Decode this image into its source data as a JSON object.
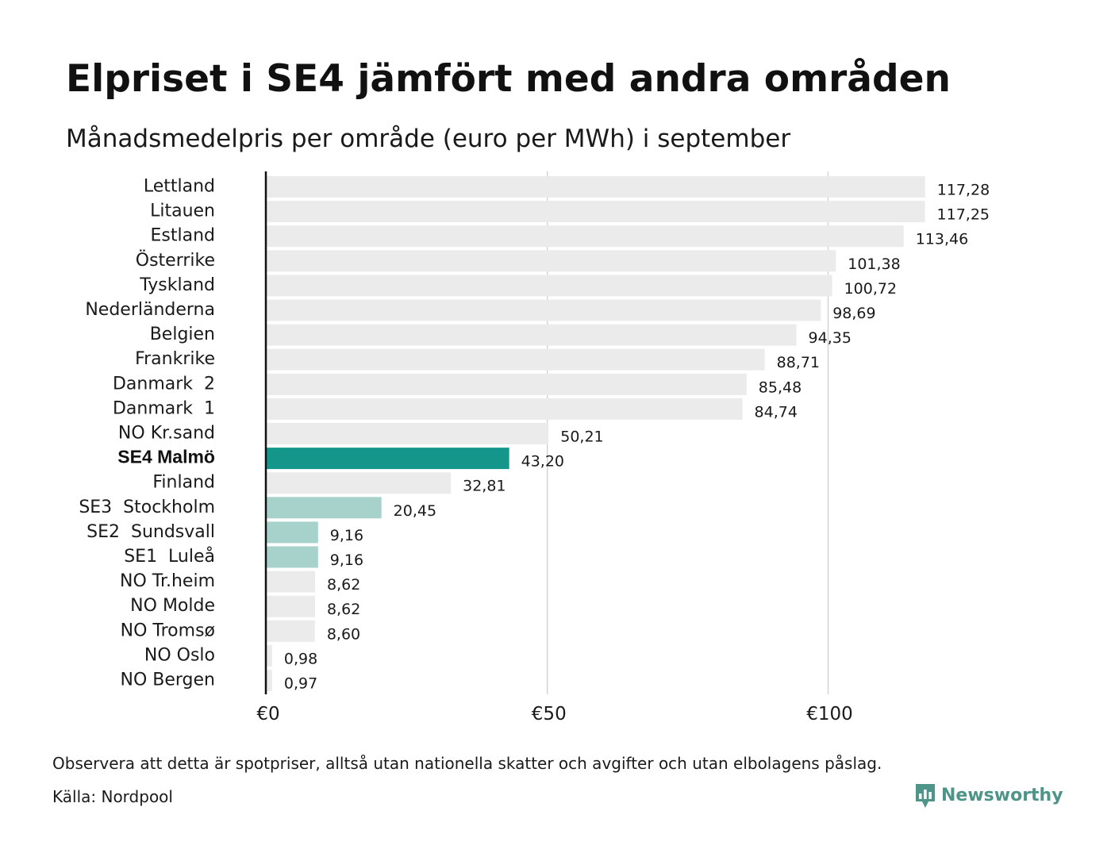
{
  "title": "Elpriset i SE4 jämfört med andra områden",
  "subtitle": "Månadsmedelpris per område (euro per MWh) i september",
  "footnote": "Observera att detta är spotpriser, alltså utan nationella skatter och avgifter och utan elbolagens påslag.",
  "source": "Källa: Nordpool",
  "brand": {
    "name": "Newsworthy",
    "icon": "newsworthy-logo-icon",
    "color": "#4f9488"
  },
  "colors": {
    "default_bar": "#ebebeb",
    "highlight_bar": "#14968a",
    "swedish_bar": "#a7d1cb",
    "axis_line": "#111111",
    "grid_line": "#c9cbd6"
  },
  "chart_data": {
    "type": "bar",
    "orientation": "horizontal",
    "categories": [
      "Lettland",
      "Litauen",
      "Estland",
      "Österrike",
      "Tyskland",
      "Nederländerna",
      "Belgien",
      "Frankrike",
      "Danmark  2",
      "Danmark  1",
      "NO Kr.sand",
      "SE4 Malmö",
      "Finland",
      "SE3  Stockholm",
      "SE2  Sundsvall",
      "SE1  Luleå",
      "NO Tr.heim",
      "NO Molde",
      "NO Tromsø",
      "NO Oslo",
      "NO Bergen"
    ],
    "values": [
      117.28,
      117.25,
      113.46,
      101.38,
      100.72,
      98.69,
      94.35,
      88.71,
      85.48,
      84.74,
      50.21,
      43.2,
      32.81,
      20.45,
      9.16,
      9.16,
      8.62,
      8.62,
      8.6,
      0.98,
      0.97
    ],
    "value_labels": [
      "117,28",
      "117,25",
      "113,46",
      "101,38",
      "100,72",
      "98,69",
      "94,35",
      "88,71",
      "85,48",
      "84,74",
      "50,21",
      "43,20",
      "32,81",
      "20,45",
      "9,16",
      "9,16",
      "8,62",
      "8,62",
      "8,60",
      "0,98",
      "0,97"
    ],
    "bar_colors": [
      "default",
      "default",
      "default",
      "default",
      "default",
      "default",
      "default",
      "default",
      "default",
      "default",
      "default",
      "highlight",
      "default",
      "swedish",
      "swedish",
      "swedish",
      "default",
      "default",
      "default",
      "default",
      "default"
    ],
    "bold_category": "SE4 Malmö",
    "xlim": [
      0,
      125
    ],
    "x_ticks": [
      0,
      50,
      100
    ],
    "x_tick_labels": [
      "€0",
      "€50",
      "€100"
    ],
    "grid": true,
    "xlabel": "",
    "ylabel": ""
  }
}
